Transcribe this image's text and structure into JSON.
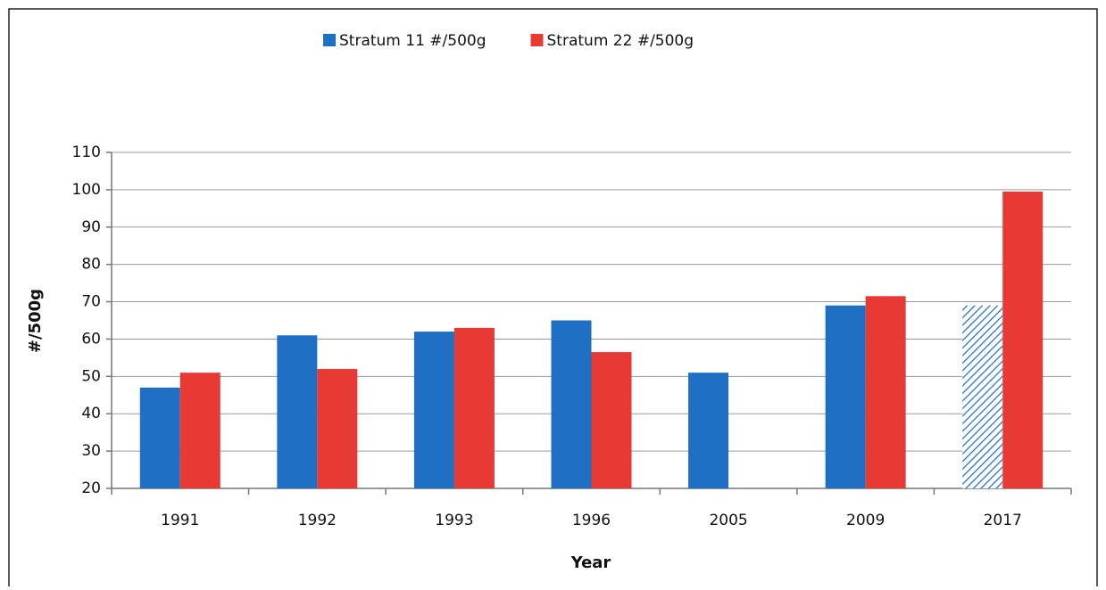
{
  "chart_data": {
    "type": "bar",
    "x_label": "Year",
    "y_label": "#/500g",
    "categories": [
      "1991",
      "1992",
      "1993",
      "1996",
      "2005",
      "2009",
      "2017"
    ],
    "series": [
      {
        "name": "Stratum 11 #/500g",
        "color": "#1f6fc5",
        "values": [
          47,
          61,
          62,
          65,
          51,
          69,
          69
        ],
        "hatched": [
          6
        ]
      },
      {
        "name": "Stratum 22 #/500g",
        "color": "#e83a35",
        "values": [
          51,
          52,
          63,
          56.5,
          null,
          71.5,
          99.5
        ]
      }
    ],
    "ylim": [
      20,
      110
    ],
    "yticks": [
      20,
      30,
      40,
      50,
      60,
      70,
      80,
      90,
      100,
      110
    ],
    "grid": true,
    "legend": "top"
  }
}
